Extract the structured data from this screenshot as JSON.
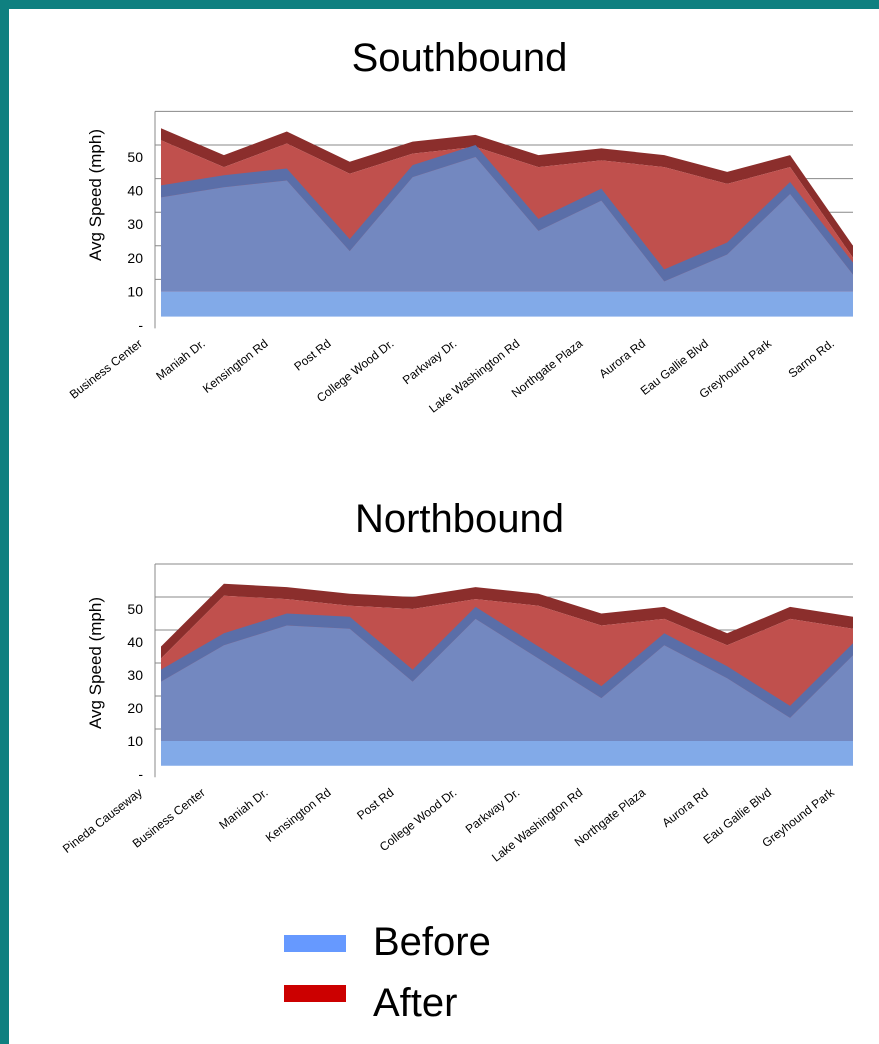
{
  "colors": {
    "frame": "#0f8080",
    "before": "#7388c0",
    "before_base": "#82aae8",
    "after": "#c0504d",
    "after_top": "#8b2e2c",
    "legend_before": "#6699ff",
    "legend_after": "#cc0000",
    "grid": "#888888"
  },
  "legend": {
    "before_label": "Before",
    "after_label": "After"
  },
  "chart_data": [
    {
      "type": "area",
      "title": "Southbound",
      "ylabel": "Avg Speed (mph)",
      "ylim": [
        0,
        60
      ],
      "yticks": [
        "-",
        "10",
        "20",
        "30",
        "40",
        "50"
      ],
      "grid": true,
      "categories": [
        "Business Center",
        "Maniah Dr.",
        "Kensington Rd",
        "Post Rd",
        "College Wood Dr.",
        "Parkway Dr.",
        "Lake Washington Rd",
        "Northgate Plaza",
        "Aurora Rd",
        "Eau Gallie Blvd",
        "Greyhound Park",
        "Sarno Rd."
      ],
      "series": [
        {
          "name": "Before",
          "values": [
            38,
            41,
            43,
            22,
            44,
            50,
            28,
            37,
            13,
            21,
            39,
            15
          ]
        },
        {
          "name": "After",
          "values": [
            55,
            47,
            54,
            45,
            51,
            53,
            47,
            49,
            47,
            42,
            47,
            20
          ]
        }
      ]
    },
    {
      "type": "area",
      "title": "Northbound",
      "ylabel": "Avg Speed (mph)",
      "ylim": [
        0,
        60
      ],
      "yticks": [
        "-",
        "10",
        "20",
        "30",
        "40",
        "50"
      ],
      "grid": true,
      "categories": [
        "Pineda Causeway",
        "Business Center",
        "Maniah Dr.",
        "Kensington Rd",
        "Post Rd",
        "College Wood Dr.",
        "Parkway Dr.",
        "Lake Washington Rd",
        "Northgate Plaza",
        "Aurora Rd",
        "Eau Gallie Blvd",
        "Greyhound Park"
      ],
      "series": [
        {
          "name": "Before",
          "values": [
            28,
            39,
            45,
            44,
            28,
            47,
            35,
            23,
            39,
            29,
            17,
            36
          ]
        },
        {
          "name": "After",
          "values": [
            35,
            54,
            53,
            51,
            50,
            53,
            51,
            45,
            47,
            39,
            47,
            44
          ]
        }
      ]
    }
  ]
}
